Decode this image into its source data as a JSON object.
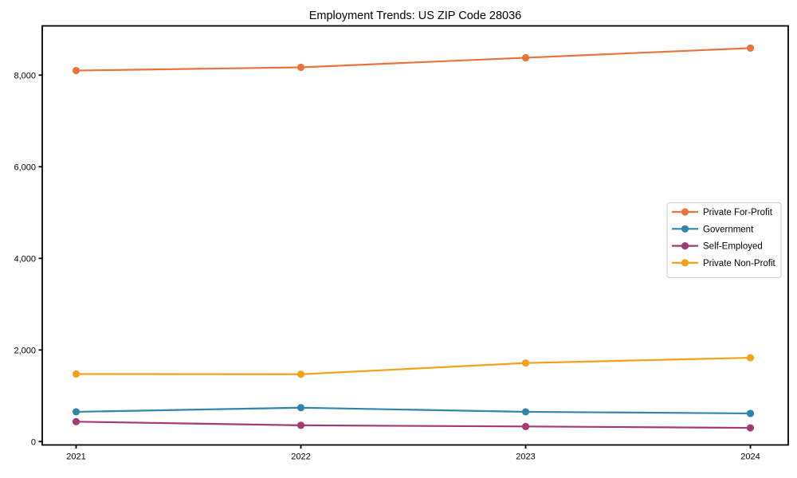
{
  "figure": {
    "background": "#ffffff",
    "axis_color": "#000000"
  },
  "chart_data": {
    "type": "line",
    "title": "Employment Trends: US ZIP Code 28036",
    "xlabel": "",
    "ylabel": "",
    "grid": false,
    "legend_position": "center-right",
    "x": [
      2021,
      2022,
      2023,
      2024
    ],
    "x_tick_labels": [
      "2021",
      "2022",
      "2023",
      "2024"
    ],
    "y_ticks": [
      0,
      2000,
      4000,
      6000,
      8000
    ],
    "y_tick_labels": [
      "0",
      "2,000",
      "4,000",
      "6,000",
      "8,000"
    ],
    "ylim": [
      -75,
      9075
    ],
    "series": [
      {
        "name": "Private For-Profit",
        "color": "#e8743b",
        "values": [
          8100,
          8170,
          8380,
          8590
        ]
      },
      {
        "name": "Government",
        "color": "#2e86ab",
        "values": [
          650,
          740,
          650,
          615
        ]
      },
      {
        "name": "Self-Employed",
        "color": "#a23b72",
        "values": [
          435,
          355,
          330,
          300
        ]
      },
      {
        "name": "Private Non-Profit",
        "color": "#f5a01a",
        "values": [
          1475,
          1470,
          1715,
          1830
        ]
      }
    ]
  }
}
